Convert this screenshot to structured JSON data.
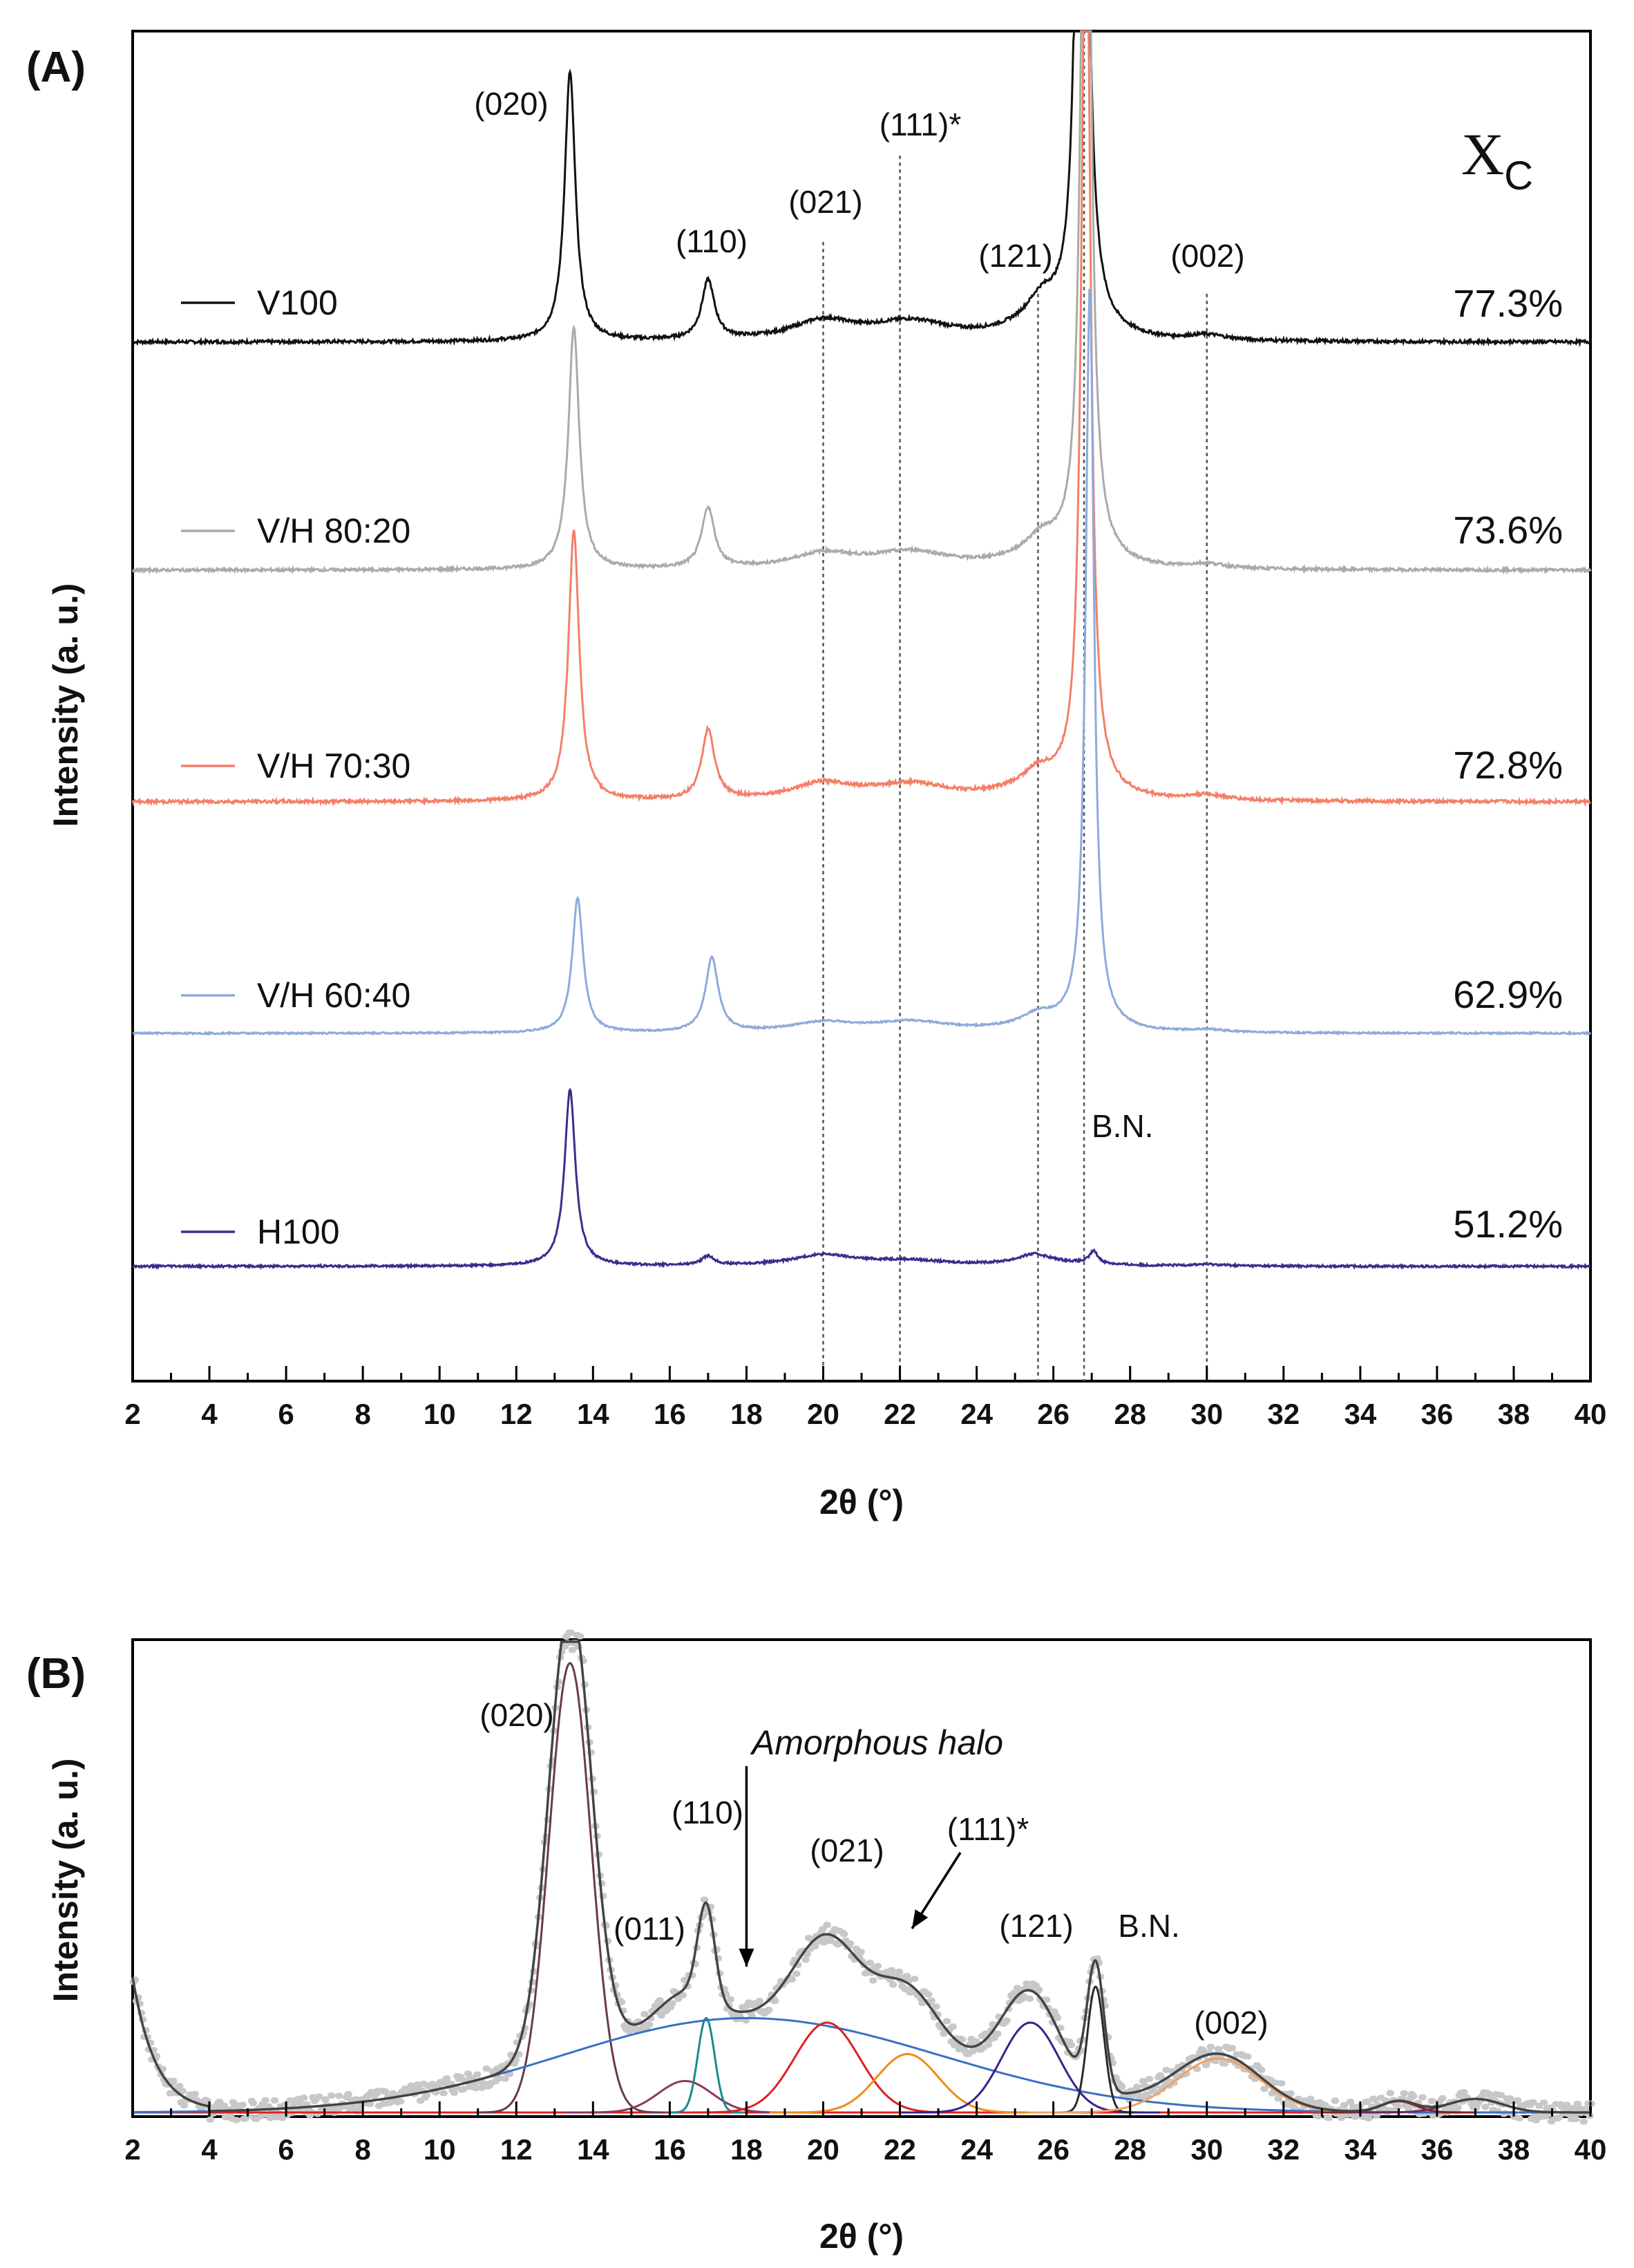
{
  "panel_a": {
    "label": "(A)",
    "xlabel": "2θ (°)",
    "ylabel": "Intensity (a. u.)",
    "xc_header": "X",
    "xc_sub": "C",
    "peak_labels": [
      {
        "text": "(020)",
        "x": 13.4
      },
      {
        "text": "(110)",
        "x": 17.0
      },
      {
        "text": "(021)",
        "x": 20.0
      },
      {
        "text": "(111)*",
        "x": 22.5
      },
      {
        "text": "(121)",
        "x": 25.0
      },
      {
        "text": "(002)",
        "x": 30.0
      }
    ],
    "bn_label": "B.N.",
    "guide_lines": [
      20,
      22,
      25.6,
      26.8,
      30
    ],
    "series": [
      {
        "name": "V100",
        "color": "#111111",
        "xc": "77.3%"
      },
      {
        "name": "V/H 80:20",
        "color": "#aaaaaa",
        "xc": "73.6%"
      },
      {
        "name": "V/H 70:30",
        "color": "#f47f68",
        "xc": "72.8%"
      },
      {
        "name": "V/H 60:40",
        "color": "#8eaadb",
        "xc": "62.9%"
      },
      {
        "name": "H100",
        "color": "#3f2a8c",
        "xc": "51.2%"
      }
    ]
  },
  "panel_b": {
    "label": "(B)",
    "xlabel": "2θ (°)",
    "ylabel": "Intensity (a. u.)",
    "peak_labels": [
      {
        "text": "(020)",
        "x": 13.0
      },
      {
        "text": "(011)",
        "x": 15.8
      },
      {
        "text": "(110)",
        "x": 17.0
      },
      {
        "text": "Amorphous halo",
        "x": 18.0
      },
      {
        "text": "(021)",
        "x": 20.5
      },
      {
        "text": "(111)*",
        "x": 23.8
      },
      {
        "text": "(121)",
        "x": 25.3
      },
      {
        "text": "B.N.",
        "x": 28.0
      },
      {
        "text": "(002)",
        "x": 30.2
      }
    ]
  },
  "chart_data": [
    {
      "type": "line",
      "title": "",
      "xlabel": "2θ (°)",
      "ylabel": "Intensity (a. u.)",
      "xlim": [
        2,
        40
      ],
      "x_ticks": [
        2,
        4,
        6,
        8,
        10,
        12,
        14,
        16,
        18,
        20,
        22,
        24,
        26,
        28,
        30,
        32,
        34,
        36,
        38,
        40
      ],
      "series": [
        {
          "name": "V100",
          "color": "#111111",
          "x": [
            2,
            10,
            12,
            13,
            13.4,
            13.8,
            15,
            16,
            17,
            18,
            20,
            22,
            24,
            25.6,
            26.4,
            26.8,
            27.2,
            28,
            30,
            34,
            40
          ],
          "y": [
            0.05,
            0.05,
            0.06,
            0.2,
            1.0,
            0.2,
            0.07,
            0.1,
            0.25,
            0.08,
            0.12,
            0.16,
            0.07,
            0.15,
            0.5,
            5.0,
            0.6,
            0.12,
            0.07,
            0.06,
            0.05
          ]
        },
        {
          "name": "V/H 80:20",
          "color": "#aaaaaa",
          "x": [
            2,
            10,
            12,
            13,
            13.5,
            13.9,
            15,
            16,
            17,
            18,
            20,
            22,
            24,
            25.6,
            26.4,
            26.9,
            27.3,
            28,
            30,
            34,
            40
          ],
          "y": [
            0.05,
            0.05,
            0.06,
            0.2,
            1.0,
            0.2,
            0.07,
            0.1,
            0.3,
            0.08,
            0.1,
            0.14,
            0.07,
            0.14,
            0.5,
            4.0,
            0.5,
            0.12,
            0.07,
            0.06,
            0.05
          ]
        },
        {
          "name": "V/H 70:30",
          "color": "#f47f68",
          "x": [
            2,
            10,
            12,
            13,
            13.5,
            13.9,
            15,
            16,
            17,
            18,
            20,
            22,
            24,
            25.6,
            26.4,
            26.9,
            27.3,
            28,
            30,
            34,
            40
          ],
          "y": [
            0.05,
            0.05,
            0.06,
            0.2,
            1.0,
            0.2,
            0.07,
            0.1,
            0.35,
            0.08,
            0.1,
            0.14,
            0.07,
            0.13,
            0.5,
            3.8,
            0.5,
            0.12,
            0.07,
            0.06,
            0.05
          ]
        },
        {
          "name": "V/H 60:40",
          "color": "#8eaadb",
          "x": [
            2,
            10,
            12,
            13,
            13.6,
            14,
            15,
            16,
            17.1,
            18,
            20,
            22,
            24,
            25.6,
            26.4,
            27.0,
            27.4,
            28,
            30,
            34,
            40
          ],
          "y": [
            0.05,
            0.05,
            0.06,
            0.15,
            0.65,
            0.15,
            0.07,
            0.1,
            0.45,
            0.08,
            0.1,
            0.14,
            0.07,
            0.13,
            0.5,
            5.0,
            0.5,
            0.12,
            0.07,
            0.06,
            0.05
          ]
        },
        {
          "name": "H100",
          "color": "#3f2a8c",
          "x": [
            2,
            10,
            12,
            13,
            13.4,
            13.8,
            15,
            16,
            17,
            18,
            20,
            22,
            24,
            25.5,
            26.5,
            27.0,
            27.5,
            28,
            30,
            34,
            40
          ],
          "y": [
            0.05,
            0.05,
            0.06,
            0.2,
            1.0,
            0.2,
            0.07,
            0.08,
            0.1,
            0.08,
            0.12,
            0.09,
            0.06,
            0.1,
            0.06,
            0.1,
            0.06,
            0.05,
            0.06,
            0.05,
            0.05
          ]
        }
      ]
    },
    {
      "type": "line",
      "title": "",
      "xlabel": "2θ (°)",
      "ylabel": "Intensity (a. u.)",
      "xlim": [
        2,
        40
      ],
      "x_ticks": [
        2,
        4,
        6,
        8,
        10,
        12,
        14,
        16,
        18,
        20,
        22,
        24,
        26,
        28,
        30,
        32,
        34,
        36,
        38,
        40
      ],
      "components": [
        {
          "name": "(020)",
          "color": "#6b3a4a",
          "center": 13.4,
          "height": 1.0,
          "width": 0.55
        },
        {
          "name": "(011)",
          "color": "#8b3a62",
          "center": 16.4,
          "height": 0.07,
          "width": 0.7
        },
        {
          "name": "(110)",
          "color": "#1a8a8a",
          "center": 16.95,
          "height": 0.21,
          "width": 0.22
        },
        {
          "name": "Amorphous halo",
          "color": "#3b6fc4",
          "center": 18.0,
          "height": 0.21,
          "width": 4.8
        },
        {
          "name": "(021)",
          "color": "#e02020",
          "center": 20.1,
          "height": 0.2,
          "width": 0.85
        },
        {
          "name": "(111)*",
          "color": "#f28a1a",
          "center": 22.2,
          "height": 0.13,
          "width": 0.8
        },
        {
          "name": "(121)",
          "color": "#3a2090",
          "center": 25.4,
          "height": 0.2,
          "width": 0.75
        },
        {
          "name": "B.N.",
          "color": "#2a2a2a",
          "center": 27.1,
          "height": 0.28,
          "width": 0.22
        },
        {
          "name": "(002)",
          "color": "#f2a060",
          "center": 30.3,
          "height": 0.12,
          "width": 1.1
        },
        {
          "name": "peak 35",
          "color": "#8b2020",
          "center": 35.0,
          "height": 0.025,
          "width": 0.45
        },
        {
          "name": "peak 37",
          "color": "#6a2a6a",
          "center": 37.0,
          "height": 0.03,
          "width": 0.7
        }
      ],
      "fit_color": "#444444",
      "data_color": "#c8c8c8"
    }
  ]
}
